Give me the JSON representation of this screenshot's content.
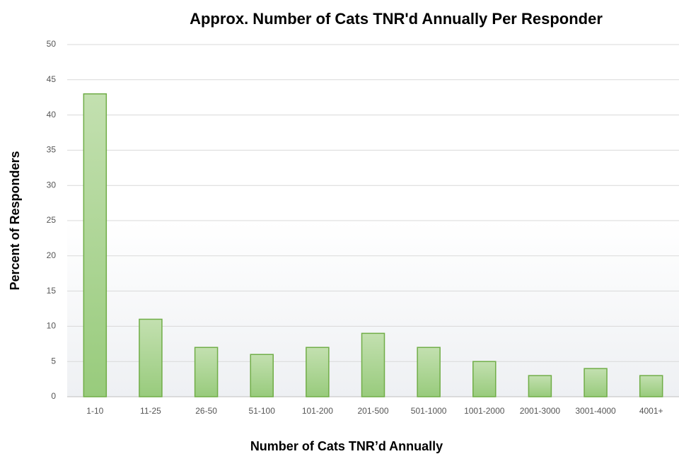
{
  "chart_data": {
    "type": "bar",
    "title": "Approx. Number of Cats TNR'd Annually Per Responder",
    "x_label": "Number of Cats TNR’d Annually",
    "y_label": "Percent of Responders",
    "categories": [
      "1-10",
      "11-25",
      "26-50",
      "51-100",
      "101-200",
      "201-500",
      "501-1000",
      "1001-2000",
      "2001-3000",
      "3001-4000",
      "4001+"
    ],
    "values": [
      43,
      11,
      7,
      6,
      7,
      9,
      7,
      5,
      3,
      4,
      3
    ],
    "color": "#a9d18e",
    "ylim": [
      0,
      50
    ],
    "yticks": [
      0,
      5,
      10,
      15,
      20,
      25,
      30,
      35,
      40,
      45,
      50
    ],
    "grid": true
  }
}
